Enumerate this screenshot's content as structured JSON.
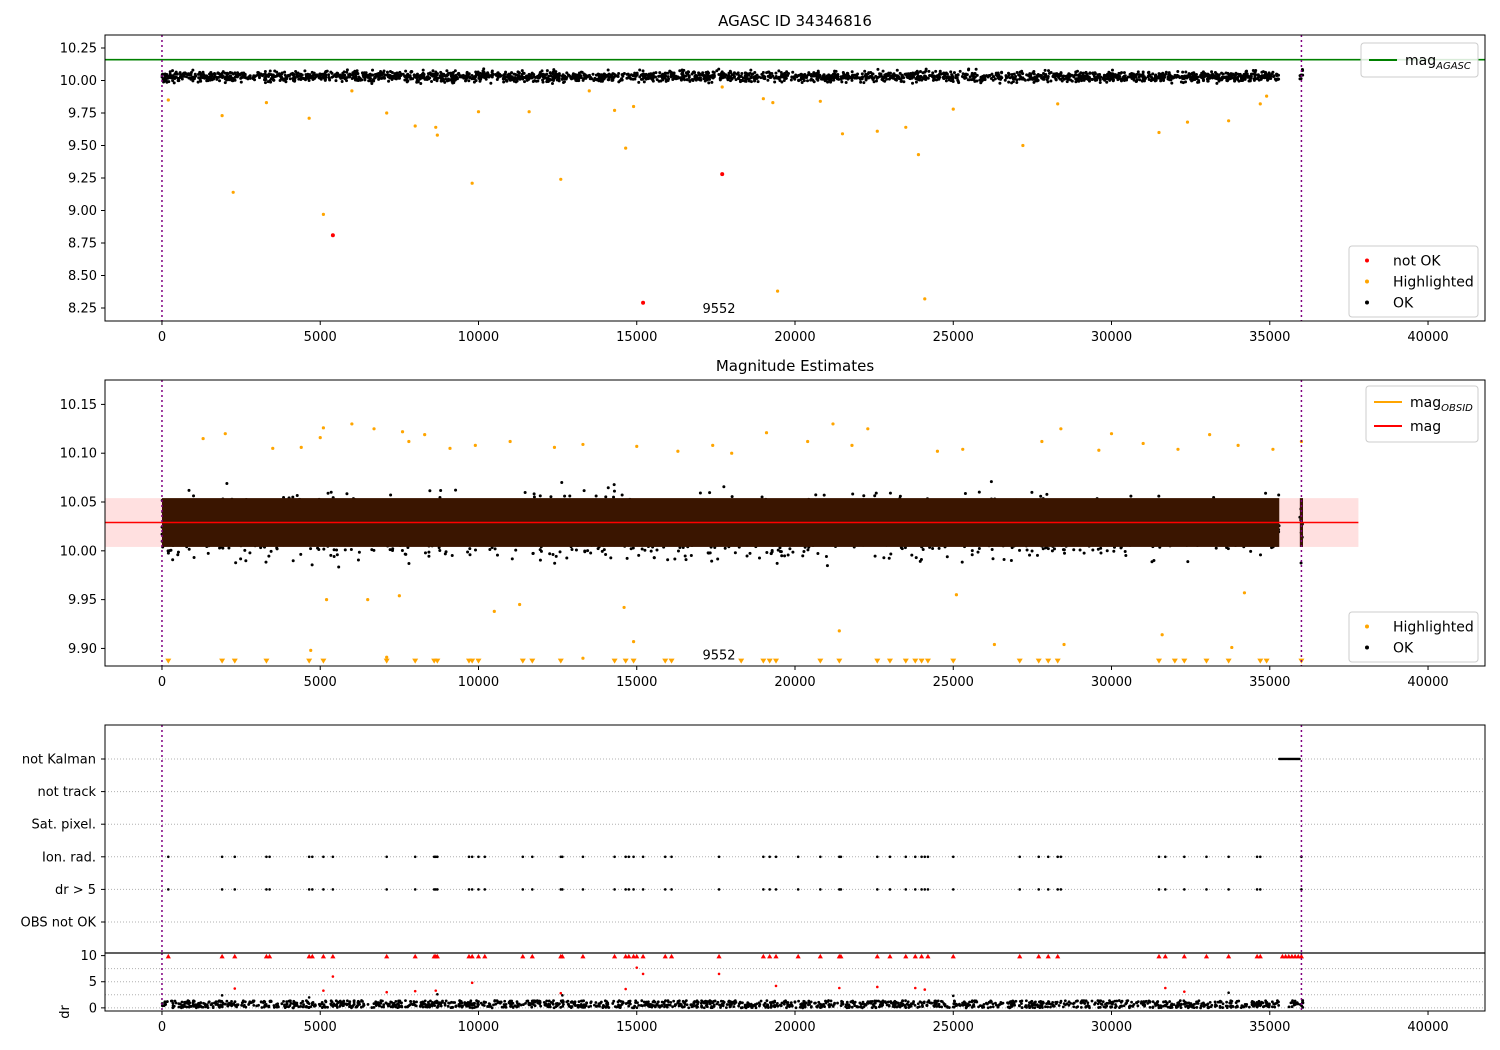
{
  "chart_data": [
    {
      "type": "scatter",
      "title": "AGASC ID 34346816",
      "xlim": [
        -1800,
        41800
      ],
      "ylim": [
        8.15,
        10.35
      ],
      "xticks": [
        0,
        5000,
        10000,
        15000,
        20000,
        25000,
        30000,
        35000,
        40000
      ],
      "yticks": [
        8.25,
        8.5,
        8.75,
        9.0,
        9.25,
        9.5,
        9.75,
        10.0,
        10.25
      ],
      "ytick_labels": [
        "8.25",
        "8.50",
        "8.75",
        "9.00",
        "9.25",
        "9.50",
        "9.75",
        "10.00",
        "10.25"
      ],
      "vlines": [
        0,
        36000
      ],
      "vline_color": "#800080",
      "hline": {
        "name": "mag_AGASC",
        "value": 10.16,
        "color": "#008000"
      },
      "annotation": {
        "text": "9552",
        "x": 17600,
        "y": 8.25
      },
      "legend_upper": {
        "placement": "top-right",
        "items": [
          {
            "label": "mag",
            "sub": "AGASC",
            "color": "#008000",
            "kind": "line"
          }
        ]
      },
      "legend_lower": {
        "placement": "bottom-right",
        "items": [
          {
            "label": "not OK",
            "color": "#ff0000",
            "kind": "dot"
          },
          {
            "label": "Highlighted",
            "color": "#ffa500",
            "kind": "dot"
          },
          {
            "label": "OK",
            "color": "#000000",
            "kind": "dot"
          }
        ]
      },
      "series": [
        {
          "name": "OK",
          "color": "#000000",
          "band": {
            "x_segments": [
              [
                0,
                35300
              ],
              [
                35950,
                36050
              ]
            ],
            "center": 10.03,
            "half_width": 0.07
          }
        },
        {
          "name": "Highlighted",
          "color": "#ffa500",
          "points": [
            [
              200,
              9.85
            ],
            [
              1900,
              9.73
            ],
            [
              2250,
              9.14
            ],
            [
              3300,
              9.83
            ],
            [
              4650,
              9.71
            ],
            [
              5100,
              8.97
            ],
            [
              7100,
              9.75
            ],
            [
              8000,
              9.65
            ],
            [
              8650,
              9.64
            ],
            [
              8700,
              9.58
            ],
            [
              9800,
              9.21
            ],
            [
              10000,
              9.76
            ],
            [
              11600,
              9.76
            ],
            [
              12600,
              9.24
            ],
            [
              14300,
              9.77
            ],
            [
              14650,
              9.48
            ],
            [
              14900,
              9.8
            ],
            [
              19000,
              9.86
            ],
            [
              19300,
              9.83
            ],
            [
              19450,
              8.38
            ],
            [
              20800,
              9.84
            ],
            [
              21500,
              9.59
            ],
            [
              22600,
              9.61
            ],
            [
              23500,
              9.64
            ],
            [
              23900,
              9.43
            ],
            [
              24100,
              8.32
            ],
            [
              25000,
              9.78
            ],
            [
              27200,
              9.5
            ],
            [
              28300,
              9.82
            ],
            [
              31500,
              9.6
            ],
            [
              32400,
              9.68
            ],
            [
              33700,
              9.69
            ],
            [
              34700,
              9.82
            ],
            [
              34900,
              9.88
            ],
            [
              6000,
              9.92
            ],
            [
              13500,
              9.92
            ],
            [
              17700,
              9.95
            ]
          ]
        },
        {
          "name": "not OK",
          "color": "#ff0000",
          "points": [
            [
              5400,
              8.81
            ],
            [
              15200,
              8.29
            ],
            [
              17700,
              9.28
            ]
          ]
        }
      ]
    },
    {
      "type": "scatter",
      "title": "Magnitude Estimates",
      "xlim": [
        -1800,
        41800
      ],
      "ylim": [
        9.882,
        10.175
      ],
      "xticks": [
        0,
        5000,
        10000,
        15000,
        20000,
        25000,
        30000,
        35000,
        40000
      ],
      "yticks": [
        9.9,
        9.95,
        10.0,
        10.05,
        10.1,
        10.15
      ],
      "ytick_labels": [
        "9.90",
        "9.95",
        "10.00",
        "10.05",
        "10.10",
        "10.15"
      ],
      "vlines": [
        0,
        36000
      ],
      "vline_color": "#800080",
      "mag_line": {
        "name": "mag",
        "value": 10.029,
        "color": "#ff0000",
        "x_range": [
          -1800,
          37800
        ]
      },
      "mag_band": {
        "low": 10.004,
        "high": 10.054,
        "color": "#ffdddd"
      },
      "annotation": {
        "text": "9552",
        "x": 17600,
        "y": 9.894
      },
      "legend_upper": {
        "placement": "top-right",
        "items": [
          {
            "label": "mag",
            "sub": "OBSID",
            "color": "#ffa500",
            "kind": "line"
          },
          {
            "label": "mag",
            "sub": "",
            "color": "#ff0000",
            "kind": "line"
          }
        ]
      },
      "legend_lower": {
        "placement": "bottom-right",
        "items": [
          {
            "label": "Highlighted",
            "color": "#ffa500",
            "kind": "dot"
          },
          {
            "label": "OK",
            "color": "#000000",
            "kind": "dot"
          }
        ]
      },
      "series": [
        {
          "name": "OK",
          "color": "#000000",
          "band": {
            "x_segments": [
              [
                0,
                35300
              ],
              [
                35950,
                36050
              ]
            ],
            "center": 10.025,
            "half_width": 0.052
          }
        },
        {
          "name": "OBSID mean",
          "color": "#3a1500",
          "band": {
            "x_segments": [
              [
                0,
                35300
              ],
              [
                35950,
                36050
              ]
            ],
            "low": 10.004,
            "high": 10.054
          }
        },
        {
          "name": "Highlighted",
          "color": "#ffa500",
          "points": [
            [
              1300,
              10.115
            ],
            [
              2000,
              10.12
            ],
            [
              3500,
              10.105
            ],
            [
              4400,
              10.106
            ],
            [
              5000,
              10.116
            ],
            [
              5100,
              10.126
            ],
            [
              6000,
              10.13
            ],
            [
              6700,
              10.125
            ],
            [
              7600,
              10.122
            ],
            [
              7800,
              10.112
            ],
            [
              8300,
              10.119
            ],
            [
              9100,
              10.105
            ],
            [
              9900,
              10.108
            ],
            [
              11000,
              10.112
            ],
            [
              12400,
              10.106
            ],
            [
              13300,
              10.109
            ],
            [
              15000,
              10.107
            ],
            [
              16300,
              10.102
            ],
            [
              17400,
              10.108
            ],
            [
              18000,
              10.1
            ],
            [
              19100,
              10.121
            ],
            [
              20400,
              10.112
            ],
            [
              21200,
              10.13
            ],
            [
              21800,
              10.108
            ],
            [
              22300,
              10.125
            ],
            [
              24500,
              10.102
            ],
            [
              25300,
              10.104
            ],
            [
              27800,
              10.112
            ],
            [
              28400,
              10.125
            ],
            [
              29600,
              10.103
            ],
            [
              30000,
              10.12
            ],
            [
              31000,
              10.11
            ],
            [
              32100,
              10.104
            ],
            [
              33100,
              10.119
            ],
            [
              34000,
              10.108
            ],
            [
              35100,
              10.104
            ],
            [
              36000,
              10.112
            ],
            [
              5200,
              9.95
            ],
            [
              6500,
              9.95
            ],
            [
              7500,
              9.954
            ],
            [
              10500,
              9.938
            ],
            [
              11300,
              9.945
            ],
            [
              14600,
              9.942
            ],
            [
              25100,
              9.955
            ],
            [
              34200,
              9.957
            ],
            [
              4700,
              9.898
            ],
            [
              7100,
              9.891
            ],
            [
              13300,
              9.89
            ],
            [
              14900,
              9.907
            ],
            [
              21400,
              9.918
            ],
            [
              26300,
              9.904
            ],
            [
              28500,
              9.904
            ],
            [
              31600,
              9.914
            ],
            [
              33800,
              9.901
            ]
          ]
        },
        {
          "name": "Highlighted (below axis)",
          "color": "#ffa500",
          "marker": "triangle-down",
          "y": 9.887,
          "x": [
            200,
            1900,
            2300,
            3300,
            4650,
            5100,
            7100,
            8000,
            8600,
            8700,
            9700,
            9800,
            10000,
            11400,
            11700,
            12600,
            14300,
            14650,
            14900,
            15900,
            16100,
            18300,
            19000,
            19200,
            19400,
            20800,
            21400,
            22600,
            23000,
            23500,
            23800,
            24000,
            24200,
            25000,
            27100,
            27700,
            28000,
            28300,
            31500,
            32000,
            32300,
            33000,
            33700,
            34700,
            34900,
            36000
          ]
        }
      ]
    },
    {
      "type": "scatter",
      "title": "",
      "xlim": [
        -1800,
        41800
      ],
      "categories": [
        "not Kalman",
        "not track",
        "Sat. pixel.",
        "Ion. rad.",
        "dr > 5",
        "OBS not OK"
      ],
      "vlines": [
        0,
        36000
      ],
      "vline_color": "#800080",
      "flag_points": {
        "not Kalman": {
          "x_range": [
            35300,
            35950
          ]
        },
        "Ion. rad.": {
          "x": [
            200,
            1900,
            2300,
            3300,
            3400,
            4650,
            4750,
            5100,
            5400,
            7100,
            8000,
            8600,
            8650,
            8700,
            9700,
            9800,
            10000,
            10200,
            11400,
            11700,
            12600,
            12650,
            13300,
            14300,
            14650,
            14750,
            14900,
            15200,
            15900,
            16100,
            17600,
            19000,
            19200,
            19400,
            20100,
            20800,
            21400,
            21450,
            22600,
            23000,
            23500,
            23800,
            24000,
            24100,
            24200,
            25000,
            27100,
            27700,
            28000,
            28300,
            28400,
            31500,
            31700,
            32300,
            33000,
            33700,
            34600,
            34700,
            36000
          ]
        },
        "dr > 5": {
          "x": [
            200,
            1900,
            2300,
            3300,
            3400,
            4650,
            4750,
            5100,
            5400,
            7100,
            8000,
            8600,
            8650,
            8700,
            9700,
            9800,
            10000,
            10200,
            11400,
            11700,
            12600,
            12650,
            13300,
            14300,
            14650,
            14750,
            14900,
            15200,
            15900,
            16100,
            17600,
            19000,
            19200,
            19400,
            20100,
            20800,
            21400,
            21450,
            22600,
            23000,
            23500,
            23800,
            24000,
            24100,
            24200,
            25000,
            27100,
            27700,
            28000,
            28300,
            28400,
            31500,
            31700,
            32300,
            33000,
            33700,
            34600,
            34700,
            36000
          ]
        }
      }
    },
    {
      "type": "scatter",
      "title": "",
      "ylabel": "dr",
      "xlim": [
        -1800,
        41800
      ],
      "ylim": [
        -0.6,
        10.5
      ],
      "xticks": [
        0,
        5000,
        10000,
        15000,
        20000,
        25000,
        30000,
        35000,
        40000
      ],
      "yticks": [
        0,
        5,
        10
      ],
      "ytick_labels": [
        "0",
        "5",
        "10"
      ],
      "vlines": [
        0,
        36000
      ],
      "vline_color": "#800080",
      "series": [
        {
          "name": "OK",
          "color": "#000000",
          "band": {
            "x_segments": [
              [
                0,
                35300
              ],
              [
                35600,
                36050
              ]
            ],
            "low": 0.0,
            "high": 1.4
          }
        },
        {
          "name": "capped",
          "color": "#ff0000",
          "marker": "triangle-up",
          "y": 9.9,
          "x": [
            200,
            1900,
            2300,
            3300,
            3400,
            4650,
            4750,
            5100,
            5400,
            7100,
            8000,
            8600,
            8650,
            8700,
            9700,
            9800,
            10000,
            10200,
            11400,
            11700,
            12600,
            12650,
            13300,
            14300,
            14650,
            14750,
            14900,
            15000,
            15200,
            15900,
            16100,
            17600,
            19000,
            19200,
            19400,
            20100,
            20800,
            21400,
            21450,
            22600,
            23000,
            23500,
            23800,
            24000,
            24200,
            25000,
            27100,
            27700,
            28000,
            28300,
            31500,
            31700,
            32300,
            33000,
            33700,
            34600,
            34700,
            35400,
            35500,
            35600,
            35700,
            35800,
            35900,
            36000
          ]
        },
        {
          "name": "not OK",
          "color": "#ff0000",
          "points": [
            [
              2300,
              3.7
            ],
            [
              5100,
              3.3
            ],
            [
              5400,
              6.0
            ],
            [
              7100,
              3.0
            ],
            [
              8000,
              3.2
            ],
            [
              8650,
              3.3
            ],
            [
              9800,
              4.8
            ],
            [
              12600,
              2.8
            ],
            [
              14650,
              3.6
            ],
            [
              15000,
              7.7
            ],
            [
              15200,
              6.5
            ],
            [
              17600,
              6.5
            ],
            [
              19400,
              4.2
            ],
            [
              21400,
              3.8
            ],
            [
              22600,
              4.0
            ],
            [
              23800,
              3.8
            ],
            [
              24100,
              3.5
            ],
            [
              31700,
              3.8
            ],
            [
              32300,
              3.1
            ]
          ]
        },
        {
          "name": "OK sparse",
          "color": "#000000",
          "points": [
            [
              1900,
              2.4
            ],
            [
              4650,
              2.0
            ],
            [
              8700,
              2.6
            ],
            [
              12650,
              2.4
            ],
            [
              25000,
              2.3
            ],
            [
              33700,
              2.9
            ]
          ]
        }
      ]
    }
  ]
}
